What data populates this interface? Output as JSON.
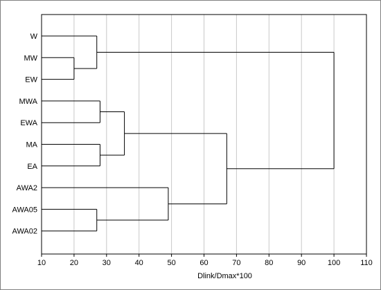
{
  "chart_data": {
    "type": "dendrogram",
    "xlabel": "Dlink/Dmax*100",
    "xlim": [
      10,
      110
    ],
    "xticks": [
      "10",
      "20",
      "30",
      "40",
      "50",
      "60",
      "70",
      "80",
      "90",
      "100",
      "110"
    ],
    "grid": "vertical",
    "leaves": [
      "W",
      "MW",
      "EW",
      "MWA",
      "EWA",
      "MA",
      "EA",
      "AWA2",
      "AWA05",
      "AWA02"
    ],
    "merges": [
      {
        "a": "MW",
        "b": "EW",
        "height": 20
      },
      {
        "a": "W",
        "b": "MW+EW",
        "height": 27
      },
      {
        "a": "MWA",
        "b": "EWA",
        "height": 28
      },
      {
        "a": "MA",
        "b": "EA",
        "height": 28
      },
      {
        "a": "MWA+EWA",
        "b": "MA+EA",
        "height": 35.5
      },
      {
        "a": "AWA05",
        "b": "AWA02",
        "height": 27
      },
      {
        "a": "AWA2",
        "b": "AWA05+AWA02",
        "height": 49
      },
      {
        "a": "MWA+EWA+MA+EA",
        "b": "AWA2+AWA05+AWA02",
        "height": 67
      },
      {
        "a": "W+MW+EW",
        "b": "MWA+EWA+MA+EA+AWA2+AWA05+AWA02",
        "height": 100
      }
    ],
    "colors": {
      "lines": "#000000",
      "grid": "#c8c8c8",
      "frame": "#000000"
    }
  }
}
